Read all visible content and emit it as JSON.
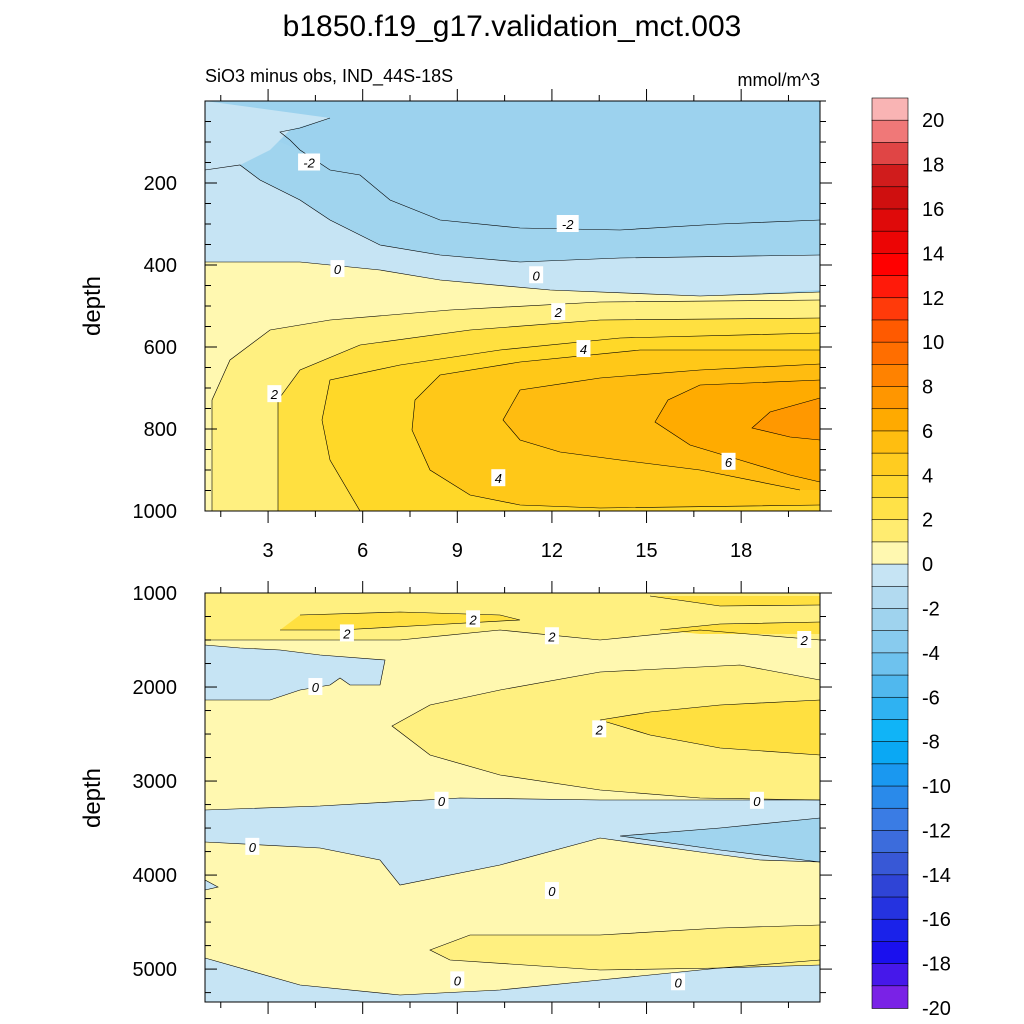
{
  "title": "b1850.f19_g17.validation_mct.003",
  "subtitle_left": "SiO3 minus obs, IND_44S-18S",
  "subtitle_right": "mmol/m^3",
  "chart_data": [
    {
      "type": "heatmap",
      "panel": "upper",
      "ylabel": "depth",
      "xlim": [
        1,
        20.5
      ],
      "ylim": [
        1000,
        0
      ],
      "xticks": [
        3,
        6,
        9,
        12,
        15,
        18
      ],
      "yticks": [
        200,
        400,
        600,
        800,
        1000
      ],
      "contour_labels": [
        {
          "text": "-2",
          "x": 4.3,
          "y": 150
        },
        {
          "text": "-2",
          "x": 12.5,
          "y": 300
        },
        {
          "text": "0",
          "x": 5.2,
          "y": 410
        },
        {
          "text": "0",
          "x": 11.5,
          "y": 425
        },
        {
          "text": "2",
          "x": 12.2,
          "y": 515
        },
        {
          "text": "4",
          "x": 13.0,
          "y": 605
        },
        {
          "text": "2",
          "x": 3.2,
          "y": 715
        },
        {
          "text": "6",
          "x": 17.6,
          "y": 880
        },
        {
          "text": "4",
          "x": 10.3,
          "y": 920
        }
      ]
    },
    {
      "type": "heatmap",
      "panel": "lower",
      "ylabel": "depth",
      "xlim": [
        1,
        20.5
      ],
      "ylim": [
        5350,
        1000
      ],
      "yticks": [
        1000,
        2000,
        3000,
        4000,
        5000
      ],
      "contour_labels": [
        {
          "text": "2",
          "x": 9.5,
          "y": 1280
        },
        {
          "text": "2",
          "x": 5.5,
          "y": 1430
        },
        {
          "text": "2",
          "x": 12.0,
          "y": 1460
        },
        {
          "text": "2",
          "x": 20.0,
          "y": 1500
        },
        {
          "text": "0",
          "x": 4.5,
          "y": 2000
        },
        {
          "text": "2",
          "x": 13.5,
          "y": 2450
        },
        {
          "text": "0",
          "x": 8.5,
          "y": 3210
        },
        {
          "text": "0",
          "x": 18.5,
          "y": 3210
        },
        {
          "text": "0",
          "x": 2.5,
          "y": 3700
        },
        {
          "text": "0",
          "x": 12.0,
          "y": 4170
        },
        {
          "text": "0",
          "x": 9.0,
          "y": 5120
        },
        {
          "text": "0",
          "x": 16.0,
          "y": 5140
        }
      ]
    }
  ],
  "colorbar": {
    "labels": [
      "20",
      "18",
      "16",
      "14",
      "12",
      "10",
      "8",
      "6",
      "4",
      "2",
      "0",
      "-2",
      "-4",
      "-6",
      "-8",
      "-10",
      "-12",
      "-14",
      "-16",
      "-18",
      "-20"
    ],
    "colors": [
      "#f9b4b4",
      "#f07878",
      "#e04545",
      "#d01c1c",
      "#cf0f0f",
      "#df0a0a",
      "#ec0505",
      "#ff0000",
      "#ff1a0a",
      "#ff3a0a",
      "#ff5a00",
      "#ff6e00",
      "#ff8200",
      "#ff9600",
      "#ffaa00",
      "#ffbe10",
      "#ffcc20",
      "#ffd830",
      "#ffe248",
      "#ffec70",
      "#fff8b0",
      "#c6e4f4",
      "#b2daf0",
      "#9fd3ee",
      "#88cbee",
      "#6ec2ee",
      "#50b8ee",
      "#2fb2f2",
      "#10b4f7",
      "#0aa8f4",
      "#1a98f0",
      "#2a8aea",
      "#3a7ce4",
      "#3c6cdc",
      "#3858d6",
      "#2f44d6",
      "#2533e0",
      "#1a22ea",
      "#1a10ee",
      "#4618ea",
      "#7a22e6"
    ]
  },
  "fills": {
    "neg_light": "#c6e4f4",
    "neg_mid": "#a0d4ee",
    "pos0": "#fff8b0",
    "pos1": "#fff080",
    "pos2": "#ffe040",
    "pos3": "#ffd020",
    "pos4": "#ffbc10",
    "pos5": "#ffab00",
    "pos6": "#ff9800"
  }
}
